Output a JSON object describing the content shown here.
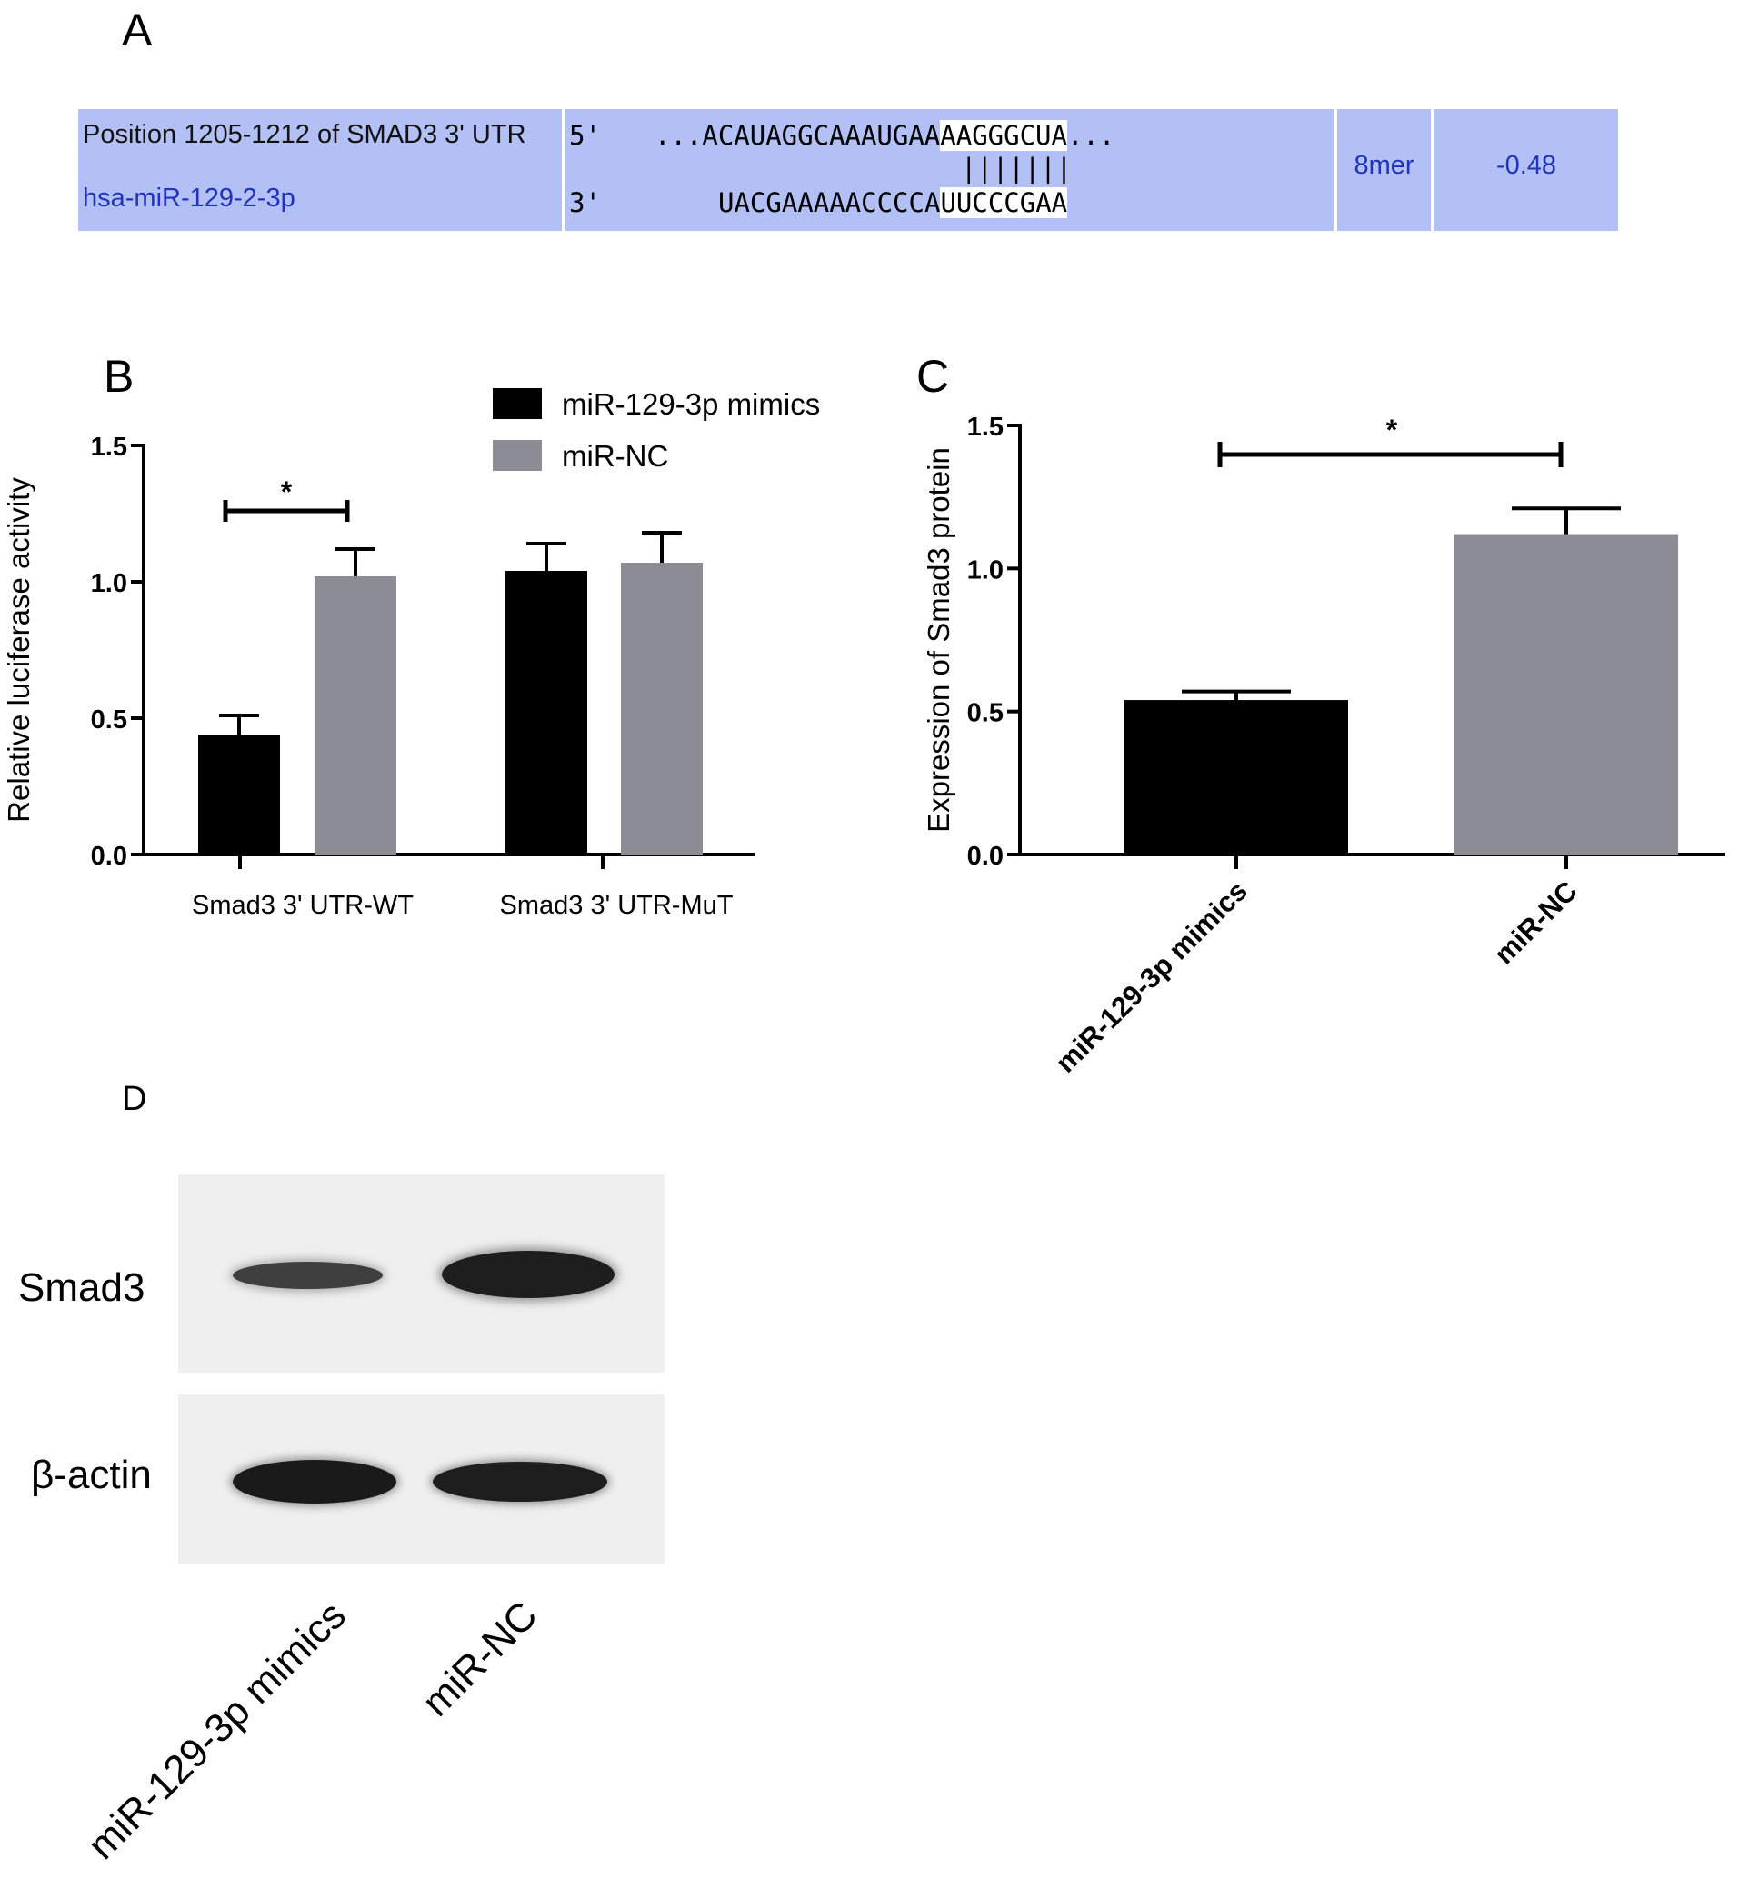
{
  "panel_a": {
    "letter": "A",
    "site_label": "Position 1205-1212 of SMAD3 3' UTR",
    "mirna_label": "hsa-miR-129-2-3p",
    "utr_prime": "5'",
    "utr_seq_prefix": "...ACAUAGGCAAAUGAA",
    "utr_seq_site": "AAGGGCUA",
    "utr_seq_suffix": "...",
    "pairing": "|||||||",
    "mir_prime": "3'",
    "mir_seq_prefix": "UACGAAAAACCCCA",
    "mir_seq_site": "UUCCCGAA",
    "site_type": "8mer",
    "context_score": "-0.48",
    "colors": {
      "cell_bg": "#b3c0f5",
      "link_text": "#2233bb"
    }
  },
  "panel_b": {
    "letter": "B",
    "significance": "*"
  },
  "panel_c": {
    "letter": "C",
    "significance": "*"
  },
  "panel_d": {
    "letter": "D",
    "rows": [
      "Smad3",
      "β-actin"
    ],
    "lanes": [
      "miR-129-3p mimics",
      "miR-NC"
    ]
  },
  "chart_data": [
    {
      "type": "bar",
      "panel": "B",
      "categories": [
        "Smad3 3' UTR-WT",
        "Smad3 3' UTR-MuT"
      ],
      "series": [
        {
          "name": "miR-129-3p mimics",
          "values": [
            0.44,
            1.04
          ],
          "errors": [
            0.07,
            0.1
          ],
          "color": "#000000"
        },
        {
          "name": "miR-NC",
          "values": [
            1.02,
            1.07
          ],
          "errors": [
            0.1,
            0.11
          ],
          "color": "#8c8c94"
        }
      ],
      "ylabel": "Relative luciferase activity",
      "ylim": [
        0,
        1.5
      ],
      "yticks": [
        "0.0",
        "0.5",
        "1.0",
        "1.5"
      ],
      "legend": "top-right",
      "annotations": [
        {
          "text": "*",
          "between": [
            "Smad3 3' UTR-WT / miR-129-3p mimics",
            "Smad3 3' UTR-WT / miR-NC"
          ]
        }
      ]
    },
    {
      "type": "bar",
      "panel": "C",
      "categories": [
        "miR-129-3p mimics",
        "miR-NC"
      ],
      "values": [
        0.54,
        1.12
      ],
      "errors": [
        0.03,
        0.09
      ],
      "colors": [
        "#000000",
        "#8c8c94"
      ],
      "ylabel": "Expression of Smad3 protein",
      "ylim": [
        0,
        1.5
      ],
      "yticks": [
        "0.0",
        "0.5",
        "1.0",
        "1.5"
      ],
      "annotations": [
        {
          "text": "*",
          "between": [
            "miR-129-3p mimics",
            "miR-NC"
          ]
        }
      ]
    }
  ]
}
